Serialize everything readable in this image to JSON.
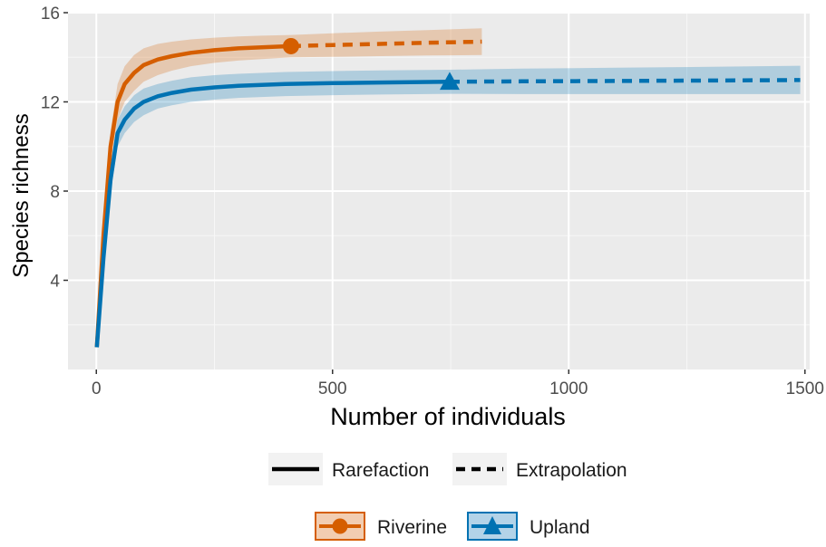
{
  "chart_data": {
    "type": "line",
    "title": "",
    "xlabel": "Number of individuals",
    "ylabel": "Species richness",
    "xlim": [
      -60,
      1510
    ],
    "ylim": [
      0,
      16
    ],
    "x_ticks": [
      0,
      500,
      1000,
      1500
    ],
    "x_tick_labels": [
      "0",
      "500",
      "1000",
      "1500"
    ],
    "y_ticks": [
      4,
      8,
      12,
      16
    ],
    "y_tick_labels": [
      "4",
      "8",
      "12",
      "16"
    ],
    "grid": true,
    "legend_position": "bottom",
    "linetype_legend": [
      {
        "label": "Rarefaction",
        "style": "solid"
      },
      {
        "label": "Extrapolation",
        "style": "dashed"
      }
    ],
    "series": [
      {
        "name": "Riverine",
        "color": "#D55E00",
        "marker": "circle",
        "observed": {
          "x": 412,
          "y": 14.5
        },
        "rarefaction": {
          "x": [
            1,
            15,
            30,
            45,
            60,
            80,
            100,
            130,
            160,
            200,
            250,
            300,
            350,
            412
          ],
          "y": [
            1.0,
            6.0,
            10.0,
            12.0,
            12.8,
            13.3,
            13.65,
            13.9,
            14.05,
            14.2,
            14.32,
            14.4,
            14.45,
            14.5
          ],
          "lower": [
            1.0,
            5.5,
            9.3,
            11.2,
            12.0,
            12.5,
            12.9,
            13.2,
            13.4,
            13.6,
            13.75,
            13.85,
            13.92,
            14.0
          ],
          "upper": [
            1.0,
            6.5,
            10.7,
            12.8,
            13.6,
            14.1,
            14.4,
            14.6,
            14.7,
            14.8,
            14.88,
            14.93,
            14.97,
            15.0
          ]
        },
        "extrapolation": {
          "x": [
            412,
            500,
            600,
            700,
            816
          ],
          "y": [
            14.5,
            14.55,
            14.6,
            14.65,
            14.7
          ],
          "lower": [
            14.0,
            14.02,
            14.05,
            14.08,
            14.1
          ],
          "upper": [
            15.0,
            15.08,
            15.15,
            15.22,
            15.3
          ]
        }
      },
      {
        "name": "Upland",
        "color": "#0072B2",
        "marker": "triangle",
        "observed": {
          "x": 748,
          "y": 12.9
        },
        "rarefaction": {
          "x": [
            1,
            15,
            30,
            45,
            60,
            80,
            100,
            130,
            160,
            200,
            250,
            300,
            400,
            500,
            600,
            748
          ],
          "y": [
            1.0,
            5.0,
            8.5,
            10.6,
            11.2,
            11.7,
            12.0,
            12.25,
            12.4,
            12.55,
            12.65,
            12.72,
            12.8,
            12.84,
            12.87,
            12.9
          ],
          "lower": [
            1.0,
            4.6,
            7.9,
            10.0,
            10.6,
            11.1,
            11.4,
            11.7,
            11.85,
            12.0,
            12.1,
            12.18,
            12.26,
            12.3,
            12.33,
            12.36
          ],
          "upper": [
            1.0,
            5.4,
            9.1,
            11.2,
            11.8,
            12.3,
            12.6,
            12.8,
            12.95,
            13.1,
            13.2,
            13.26,
            13.34,
            13.38,
            13.41,
            13.44
          ]
        },
        "extrapolation": {
          "x": [
            748,
            900,
            1100,
            1300,
            1490
          ],
          "y": [
            12.9,
            12.92,
            12.94,
            12.96,
            12.98
          ],
          "lower": [
            12.36,
            12.35,
            12.35,
            12.35,
            12.35
          ],
          "upper": [
            13.44,
            13.49,
            13.53,
            13.57,
            13.62
          ]
        }
      }
    ]
  }
}
